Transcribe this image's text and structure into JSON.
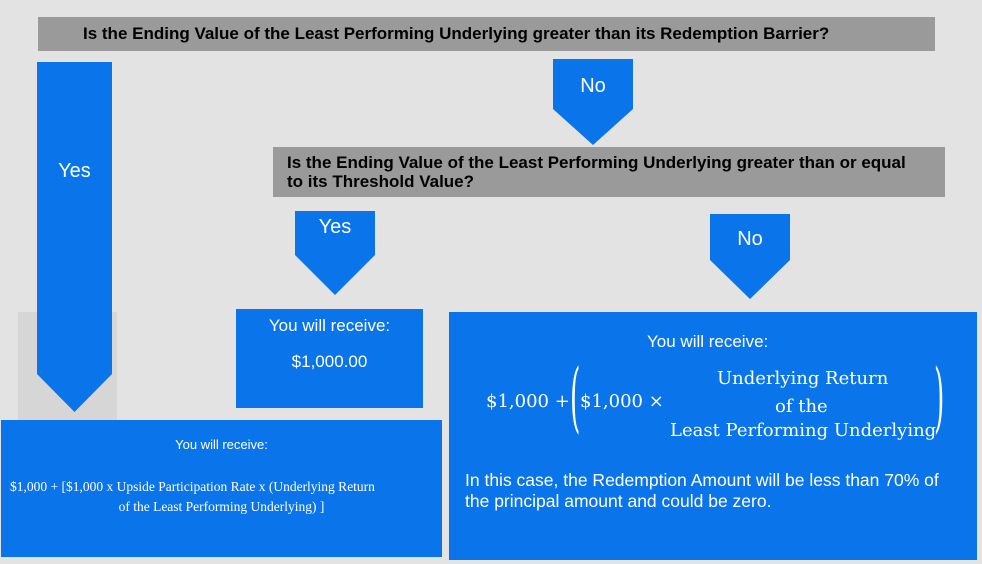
{
  "question1": "Is the Ending Value of the Least Performing Underlying greater than its Redemption Barrier?",
  "question2": "Is the Ending Value of the Least Performing Underlying greater than or equal to its Threshold Value?",
  "arrows": {
    "yes_long": "Yes",
    "no_top": "No",
    "yes_mid": "Yes",
    "no_right": "No"
  },
  "outcome_left": {
    "heading": "You will receive:",
    "formula_line1": "$1,000 + [$1,000 x Upside Participation Rate x (Underlying Return",
    "formula_line2": "of the Least Performing Underlying) ]"
  },
  "outcome_mid": {
    "heading": "You will receive:",
    "amount": "$1,000.00"
  },
  "outcome_right": {
    "heading": "You will receive:",
    "formula_prefix": "$1,000 +",
    "formula_inner": "$1,000 ×",
    "fraction_line1": "Underlying Return",
    "fraction_line2": "of the",
    "fraction_line3": "Least Performing Underlying",
    "note": "In this case, the Redemption Amount will be less than 70% of the principal amount and could be zero."
  },
  "colors": {
    "blue": "#0a74ea",
    "gray_bar": "#9a9a9a",
    "background": "#e3e3e3"
  }
}
